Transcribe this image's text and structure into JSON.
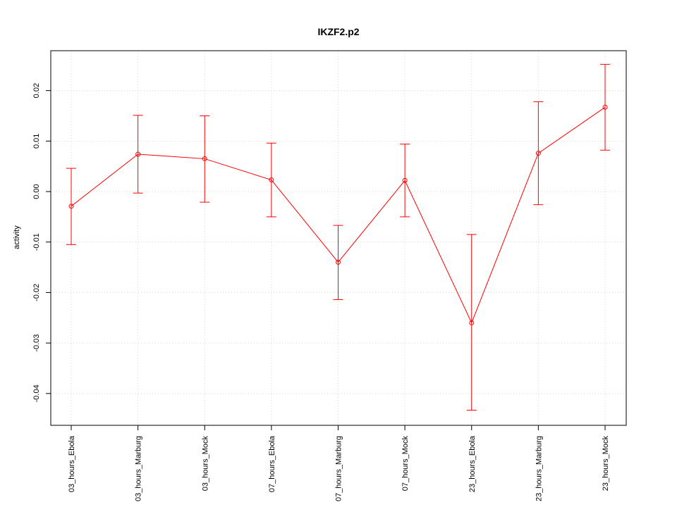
{
  "chart_data": {
    "type": "line",
    "title": "IKZF2.p2",
    "xlabel": "",
    "ylabel": "activity",
    "categories": [
      "03_hours_Ebola",
      "03_hours_Marburg",
      "03_hours_Mock",
      "07_hours_Ebola",
      "07_hours_Marburg",
      "07_hours_Mock",
      "23_hours_Ebola",
      "23_hours_Marburg",
      "23_hours_Mock"
    ],
    "series": [
      {
        "values": [
          -0.0029,
          0.0074,
          0.0065,
          0.0023,
          -0.014,
          0.0022,
          -0.026,
          0.0076,
          0.0167
        ],
        "error_upper": [
          0.0046,
          0.0151,
          0.015,
          0.0096,
          -0.0067,
          0.0094,
          -0.0085,
          0.0178,
          0.0252
        ],
        "error_lower": [
          -0.0105,
          -0.0003,
          -0.0021,
          -0.005,
          -0.0214,
          -0.005,
          -0.0433,
          -0.0026,
          0.0082
        ]
      }
    ],
    "yticks": [
      -0.04,
      -0.03,
      -0.02,
      -0.01,
      0.0,
      0.01,
      0.02
    ],
    "ytick_labels": [
      "-0.04",
      "-0.03",
      "-0.02",
      "-0.01",
      "0.00",
      "0.01",
      "0.02"
    ],
    "ylim": [
      -0.0463,
      0.0279
    ],
    "grid": true,
    "color": "#ff0000",
    "grid_color": "#d3d3d3"
  }
}
